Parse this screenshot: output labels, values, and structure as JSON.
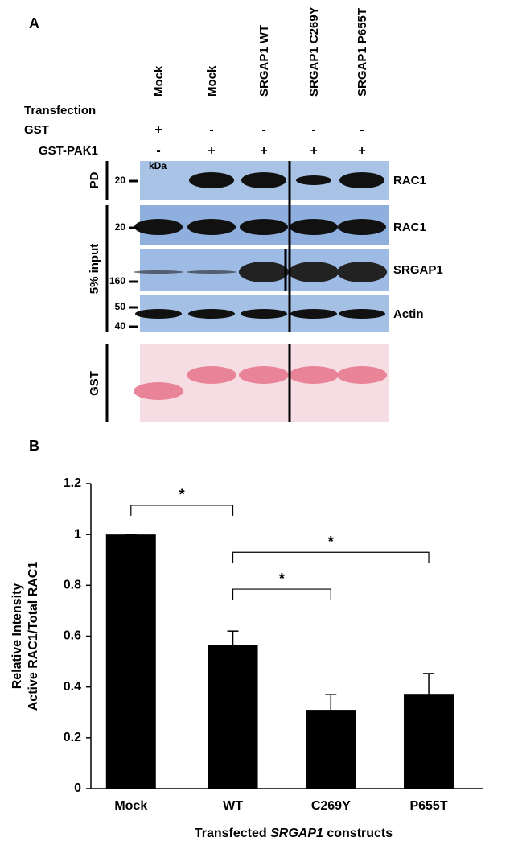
{
  "panel_a": {
    "label": "A",
    "row_labels": {
      "transfection": "Transfection",
      "gst": "GST",
      "gst_pak1": "GST-PAK1"
    },
    "lanes": [
      {
        "construct": "Mock",
        "gst": "+",
        "gst_pak1": "-"
      },
      {
        "construct": "Mock",
        "gst": "-",
        "gst_pak1": "+"
      },
      {
        "construct": "SRGAP1 WT",
        "gst": "-",
        "gst_pak1": "+"
      },
      {
        "construct": "SRGAP1 C269Y",
        "gst": "-",
        "gst_pak1": "+"
      },
      {
        "construct": "SRGAP1 P655T",
        "gst": "-",
        "gst_pak1": "+"
      }
    ],
    "groups": [
      "PD",
      "5% input",
      "GST"
    ],
    "markers": [
      "kDa",
      "20",
      "20",
      "160",
      "50",
      "40"
    ],
    "bands": [
      "RAC1",
      "RAC1",
      "SRGAP1",
      "Actin"
    ]
  },
  "panel_b_label": "B",
  "chart_data": {
    "type": "bar",
    "y_label": [
      "Relative Intensity",
      "Active RAC1/Total RAC1"
    ],
    "x_label": [
      "Transfected ",
      "SRGAP1",
      " constructs"
    ],
    "categories": [
      "Mock",
      "WT",
      "C269Y",
      "P655T"
    ],
    "values": [
      1,
      0.565,
      0.31,
      0.373
    ],
    "errors": [
      0,
      0.055,
      0.06,
      0.08
    ],
    "color": "#000000",
    "ylim": [
      0,
      1.2
    ],
    "yticks": [
      0,
      0.2,
      0.4,
      0.6,
      0.8,
      1,
      1.2
    ],
    "grid": false,
    "annotations": [
      "*",
      "*",
      "*"
    ]
  }
}
